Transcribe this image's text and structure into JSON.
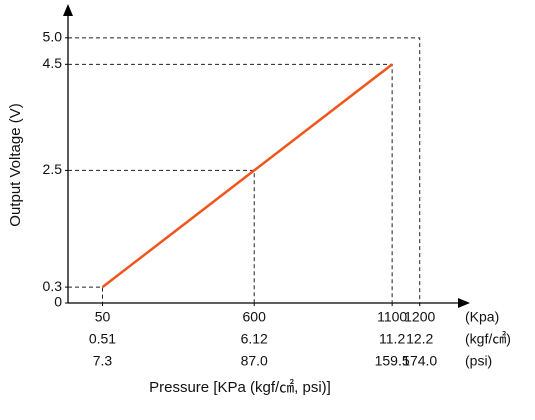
{
  "chart_data": {
    "type": "line",
    "x_label": "Pressure [KPa (kgf/㎠, psi)]",
    "y_label": "Output Voltage (V)",
    "x": [
      50,
      600,
      1100
    ],
    "series": [
      {
        "color": "#f0561c",
        "values": [
          0.3,
          2.5,
          4.5
        ]
      }
    ],
    "xlim": [
      -75,
      1375
    ],
    "ylim": [
      0,
      5.6
    ],
    "xticks": [
      50,
      600,
      1100,
      1200
    ],
    "yticks": [
      0,
      0.3,
      2.5,
      4.5,
      {
        "value": 5,
        "label": "5.0"
      }
    ],
    "x_unit_labels": [
      "(Kpa)",
      "(kgf/㎠)",
      "(psi)"
    ],
    "kgf_tick_labels": [
      "0.51",
      "6.12",
      "11.2",
      "12.2"
    ],
    "psi_tick_labels": [
      "7.3",
      "87.0",
      "159.5",
      "174.0"
    ]
  }
}
